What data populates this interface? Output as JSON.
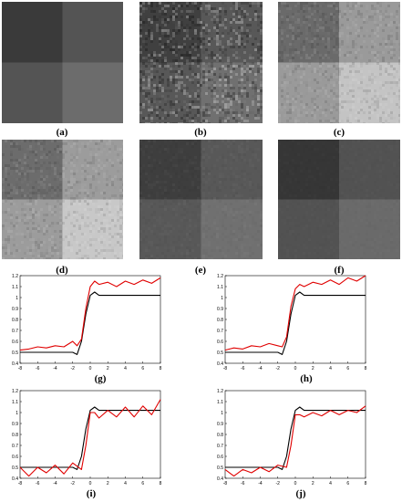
{
  "figure": {
    "panels": [
      {
        "id": "a",
        "label": "(a)"
      },
      {
        "id": "b",
        "label": "(b)"
      },
      {
        "id": "c",
        "label": "(c)"
      },
      {
        "id": "d",
        "label": "(d)"
      },
      {
        "id": "e",
        "label": "(e)"
      },
      {
        "id": "f",
        "label": "(f)"
      },
      {
        "id": "g",
        "label": "(g)"
      },
      {
        "id": "h",
        "label": "(h)"
      },
      {
        "id": "i",
        "label": "(i)"
      },
      {
        "id": "j",
        "label": "(j)"
      }
    ],
    "image_quadrants": {
      "a": {
        "tl": "#3a3a3a",
        "tr": "#545454",
        "bl": "#545454",
        "br": "#6c6c6c",
        "noise": 0
      },
      "b": {
        "tl": "#404040",
        "tr": "#585858",
        "bl": "#585858",
        "br": "#707070",
        "noise": 0.9
      },
      "c": {
        "tl": "#6a6a6a",
        "tr": "#9a9a9a",
        "bl": "#9a9a9a",
        "br": "#c4c4c4",
        "noise": 0.35
      },
      "d": {
        "tl": "#6c6c6c",
        "tr": "#9c9c9c",
        "bl": "#9c9c9c",
        "br": "#c8c8c8",
        "noise": 0.35
      },
      "e": {
        "tl": "#3e3e3e",
        "tr": "#585858",
        "bl": "#585858",
        "br": "#707070",
        "noise": 0.12
      },
      "f": {
        "tl": "#363636",
        "tr": "#525252",
        "bl": "#525252",
        "br": "#6a6a6a",
        "noise": 0.06
      }
    },
    "line_colors": {
      "reference": "#000000",
      "estimate": "#e00000"
    }
  },
  "chart_data": [
    {
      "panel": "g",
      "type": "line",
      "xlim": [
        -8,
        8
      ],
      "ylim": [
        0.4,
        1.2
      ],
      "xticks": [
        "-8",
        "-6",
        "-4",
        "-2",
        "0",
        "2",
        "4",
        "6",
        "8"
      ],
      "yticks": [
        "0.4",
        "0.5",
        "0.6",
        "0.7",
        "0.8",
        "0.9",
        "1",
        "1.1",
        "1.2"
      ],
      "series": [
        {
          "color": "#000000",
          "x": [
            -8,
            -6,
            -4,
            -3,
            -2,
            -1.5,
            -1,
            -0.5,
            0,
            0.5,
            1,
            1.5,
            2,
            3,
            4,
            6,
            8
          ],
          "y": [
            0.5,
            0.5,
            0.5,
            0.5,
            0.5,
            0.48,
            0.6,
            0.85,
            1.02,
            1.05,
            1.02,
            1.02,
            1.02,
            1.02,
            1.02,
            1.02,
            1.02
          ]
        },
        {
          "color": "#e00000",
          "x": [
            -8,
            -7,
            -6,
            -5,
            -4,
            -3,
            -2,
            -1.5,
            -1,
            -0.5,
            0,
            0.5,
            1,
            2,
            3,
            4,
            5,
            6,
            7,
            8
          ],
          "y": [
            0.52,
            0.53,
            0.55,
            0.54,
            0.56,
            0.55,
            0.6,
            0.56,
            0.62,
            0.9,
            1.1,
            1.15,
            1.12,
            1.14,
            1.1,
            1.15,
            1.12,
            1.16,
            1.13,
            1.18
          ]
        }
      ]
    },
    {
      "panel": "h",
      "type": "line",
      "xlim": [
        -8,
        8
      ],
      "ylim": [
        0.4,
        1.2
      ],
      "xticks": [
        "-8",
        "-6",
        "-4",
        "-2",
        "0",
        "2",
        "4",
        "6",
        "8"
      ],
      "yticks": [
        "0.4",
        "0.5",
        "0.6",
        "0.7",
        "0.8",
        "0.9",
        "1",
        "1.1",
        "1.2"
      ],
      "series": [
        {
          "color": "#000000",
          "x": [
            -8,
            -6,
            -4,
            -3,
            -2,
            -1.5,
            -1,
            -0.5,
            0,
            0.5,
            1,
            1.5,
            2,
            3,
            4,
            6,
            8
          ],
          "y": [
            0.5,
            0.5,
            0.5,
            0.5,
            0.5,
            0.48,
            0.6,
            0.85,
            1.02,
            1.05,
            1.02,
            1.02,
            1.02,
            1.02,
            1.02,
            1.02,
            1.02
          ]
        },
        {
          "color": "#e00000",
          "x": [
            -8,
            -7,
            -6,
            -5,
            -4,
            -3,
            -2,
            -1.5,
            -1,
            -0.5,
            0,
            0.5,
            1,
            2,
            3,
            4,
            5,
            6,
            7,
            8
          ],
          "y": [
            0.52,
            0.54,
            0.53,
            0.56,
            0.55,
            0.58,
            0.56,
            0.55,
            0.64,
            0.92,
            1.08,
            1.12,
            1.1,
            1.14,
            1.12,
            1.16,
            1.12,
            1.18,
            1.15,
            1.2
          ]
        }
      ]
    },
    {
      "panel": "i",
      "type": "line",
      "xlim": [
        -8,
        8
      ],
      "ylim": [
        0.4,
        1.2
      ],
      "xticks": [
        "-8",
        "-6",
        "-4",
        "-2",
        "0",
        "2",
        "4",
        "6",
        "8"
      ],
      "yticks": [
        "0.4",
        "0.5",
        "0.6",
        "0.7",
        "0.8",
        "0.9",
        "1",
        "1.1",
        "1.2"
      ],
      "series": [
        {
          "color": "#000000",
          "x": [
            -8,
            -6,
            -4,
            -3,
            -2,
            -1.5,
            -1,
            -0.5,
            0,
            0.5,
            1,
            1.5,
            2,
            3,
            4,
            6,
            8
          ],
          "y": [
            0.5,
            0.5,
            0.5,
            0.5,
            0.5,
            0.48,
            0.6,
            0.85,
            1.02,
            1.05,
            1.02,
            1.02,
            1.02,
            1.02,
            1.02,
            1.02,
            1.02
          ]
        },
        {
          "color": "#e00000",
          "x": [
            -8,
            -7,
            -6,
            -5,
            -4,
            -3,
            -2,
            -1,
            -0.5,
            0,
            0.5,
            1,
            2,
            3,
            4,
            5,
            6,
            7,
            8
          ],
          "y": [
            0.5,
            0.42,
            0.5,
            0.45,
            0.52,
            0.44,
            0.54,
            0.48,
            0.7,
            1.0,
            1.0,
            0.95,
            1.02,
            0.96,
            1.05,
            0.96,
            1.06,
            0.98,
            1.12
          ]
        }
      ]
    },
    {
      "panel": "j",
      "type": "line",
      "xlim": [
        -8,
        8
      ],
      "ylim": [
        0.4,
        1.2
      ],
      "xticks": [
        "-8",
        "-6",
        "-4",
        "-2",
        "0",
        "2",
        "4",
        "6",
        "8"
      ],
      "yticks": [
        "0.4",
        "0.5",
        "0.6",
        "0.7",
        "0.8",
        "0.9",
        "1",
        "1.1",
        "1.2"
      ],
      "series": [
        {
          "color": "#000000",
          "x": [
            -8,
            -6,
            -4,
            -3,
            -2,
            -1.5,
            -1,
            -0.5,
            0,
            0.5,
            1,
            1.5,
            2,
            3,
            4,
            6,
            8
          ],
          "y": [
            0.5,
            0.5,
            0.5,
            0.5,
            0.5,
            0.48,
            0.6,
            0.85,
            1.02,
            1.05,
            1.02,
            1.02,
            1.02,
            1.02,
            1.02,
            1.02,
            1.02
          ]
        },
        {
          "color": "#e00000",
          "x": [
            -8,
            -7,
            -6,
            -5,
            -4,
            -3,
            -2,
            -1,
            -0.5,
            0,
            0.5,
            1,
            2,
            3,
            4,
            5,
            6,
            7,
            8
          ],
          "y": [
            0.48,
            0.42,
            0.48,
            0.45,
            0.5,
            0.46,
            0.52,
            0.5,
            0.7,
            0.98,
            0.98,
            0.96,
            1.0,
            0.97,
            1.02,
            0.98,
            1.02,
            1.0,
            1.06
          ]
        }
      ]
    }
  ]
}
